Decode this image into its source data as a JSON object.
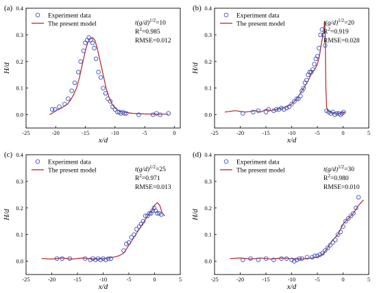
{
  "figure": {
    "panels": [
      {
        "id": "a",
        "label": "(a)",
        "t_value": "10",
        "r2": "0.985",
        "rmse": "0.012"
      },
      {
        "id": "b",
        "label": "(b)",
        "t_value": "20",
        "r2": "0.919",
        "rmse": "0.028"
      },
      {
        "id": "c",
        "label": "(c)",
        "t_value": "25",
        "r2": "0.971",
        "rmse": "0.013"
      },
      {
        "id": "d",
        "label": "(d)",
        "t_value": "30",
        "r2": "0.980",
        "rmse": "0.010"
      }
    ],
    "annotation": {
      "t_prefix": "t(g/d)",
      "t_exponent": "1/2",
      "r2_base": "R",
      "r2_exponent": "2",
      "rmse_prefix": "RMSE="
    },
    "colors": {
      "experiment": "#3a4fc1",
      "model": "#b22222",
      "axes": "#000000"
    }
  },
  "chart_data": [
    {
      "type": "scatter",
      "panel": "a",
      "xlabel": "x/d",
      "ylabel": "H/d",
      "xlim": [
        -25,
        1
      ],
      "ylim": [
        -0.05,
        0.4
      ],
      "xticks": [
        -25,
        -20,
        -15,
        -10,
        -5,
        0
      ],
      "yticks": [
        0.0,
        0.1,
        0.2,
        0.3,
        0.4
      ],
      "legend": "top-left",
      "series": [
        {
          "name": "Experiment data",
          "kind": "markers",
          "x": [
            -20.6,
            -20.1,
            -19.4,
            -18.5,
            -17.9,
            -17.3,
            -16.8,
            -16.2,
            -15.8,
            -15.3,
            -15.0,
            -14.7,
            -14.4,
            -14.1,
            -13.8,
            -13.5,
            -13.2,
            -12.8,
            -12.4,
            -12.0,
            -11.6,
            -11.2,
            -10.8,
            -10.4,
            -10.0,
            -9.6,
            -9.3,
            -9.0,
            -8.7,
            -8.4,
            -8.1,
            -6.0,
            -3.6,
            -3.0,
            -2.4,
            -1.0
          ],
          "y": [
            0.02,
            0.02,
            0.03,
            0.04,
            0.06,
            0.09,
            0.12,
            0.16,
            0.2,
            0.24,
            0.27,
            0.28,
            0.29,
            0.28,
            0.27,
            0.25,
            0.21,
            0.16,
            0.14,
            0.1,
            0.08,
            0.06,
            0.05,
            0.03,
            0.02,
            0.01,
            0.01,
            0.005,
            0.01,
            0.005,
            0.005,
            0.0,
            0.0,
            0.005,
            0.0,
            0.005
          ]
        },
        {
          "name": "The present model",
          "kind": "line",
          "x": [
            -21,
            -20,
            -19,
            -18,
            -17.5,
            -17,
            -16.5,
            -16,
            -15.5,
            -15,
            -14.6,
            -14.2,
            -13.8,
            -13.4,
            -13,
            -12.5,
            -12,
            -11.5,
            -11,
            -10.5,
            -10,
            -9.5,
            -9,
            -8,
            -7,
            -5,
            -3,
            -1
          ],
          "y": [
            0.0,
            0.015,
            0.025,
            0.04,
            0.055,
            0.075,
            0.1,
            0.14,
            0.19,
            0.24,
            0.27,
            0.285,
            0.29,
            0.28,
            0.25,
            0.2,
            0.15,
            0.1,
            0.065,
            0.04,
            0.025,
            0.017,
            0.012,
            0.008,
            0.005,
            0.003,
            0.002,
            0.002
          ]
        }
      ]
    },
    {
      "type": "scatter",
      "panel": "b",
      "xlabel": "x/d",
      "ylabel": "H/d",
      "xlim": [
        -25,
        5
      ],
      "ylim": [
        -0.05,
        0.4
      ],
      "xticks": [
        -25,
        -20,
        -15,
        -10,
        -5,
        0,
        5
      ],
      "yticks": [
        0.0,
        0.1,
        0.2,
        0.3,
        0.4
      ],
      "legend": "top-left",
      "series": [
        {
          "name": "Experiment data",
          "kind": "markers",
          "x": [
            -19.5,
            -17.5,
            -16.5,
            -15.0,
            -14.5,
            -13.5,
            -13.0,
            -12.5,
            -12.0,
            -11.5,
            -11.0,
            -10.5,
            -10.0,
            -9.5,
            -9.0,
            -8.7,
            -8.3,
            -8.0,
            -7.7,
            -7.4,
            -7.1,
            -6.8,
            -6.5,
            -6.2,
            -5.9,
            -5.6,
            -5.3,
            -5.0,
            -4.7,
            -4.4,
            -4.1,
            -3.8,
            -3.5,
            -3.2,
            -2.8,
            -2.4,
            -2.0,
            -1.6,
            -1.2,
            -0.8,
            -0.5,
            -0.2,
            0.1
          ],
          "y": [
            0.005,
            0.01,
            0.015,
            0.01,
            0.02,
            0.015,
            0.02,
            0.02,
            0.025,
            0.02,
            0.025,
            0.03,
            0.04,
            0.05,
            0.06,
            0.06,
            0.07,
            0.09,
            0.1,
            0.12,
            0.13,
            0.15,
            0.16,
            0.16,
            0.17,
            0.19,
            0.21,
            0.22,
            0.25,
            0.3,
            0.32,
            0.3,
            0.26,
            0.015,
            0.01,
            0.005,
            0.01,
            0.0,
            0.005,
            0.005,
            0.0,
            0.005,
            0.01
          ]
        },
        {
          "name": "The present model",
          "kind": "line",
          "x": [
            -23,
            -21,
            -19,
            -17,
            -16,
            -15,
            -14,
            -13,
            -12,
            -11,
            -10,
            -9,
            -8,
            -7,
            -6.5,
            -6,
            -5.5,
            -5,
            -4.6,
            -4.2,
            -3.9,
            -3.7,
            -3.55,
            -3.45,
            -3.35,
            -3.2,
            -3.0,
            -2.5,
            -1,
            0.5
          ],
          "y": [
            0.01,
            0.015,
            0.01,
            0.015,
            0.01,
            0.02,
            0.015,
            0.02,
            0.025,
            0.03,
            0.04,
            0.06,
            0.09,
            0.12,
            0.14,
            0.16,
            0.17,
            0.19,
            0.22,
            0.27,
            0.3,
            0.33,
            0.35,
            0.28,
            0.1,
            0.03,
            0.015,
            0.01,
            0.005,
            0.01
          ]
        }
      ]
    },
    {
      "type": "scatter",
      "panel": "c",
      "xlabel": "x/d",
      "ylabel": "H/d",
      "xlim": [
        -25,
        5
      ],
      "ylim": [
        -0.05,
        0.4
      ],
      "xticks": [
        -25,
        -20,
        -15,
        -10,
        -5,
        0,
        5
      ],
      "yticks": [
        0.0,
        0.1,
        0.2,
        0.3,
        0.4
      ],
      "legend": "top-left",
      "series": [
        {
          "name": "Experiment data",
          "kind": "markers",
          "x": [
            -19.0,
            -18.0,
            -16.5,
            -13.5,
            -12.5,
            -12.0,
            -11.5,
            -11.0,
            -10.5,
            -10.0,
            -9.5,
            -9.0,
            -8.5,
            -6.0,
            -5.5,
            -5.0,
            -4.5,
            -4.0,
            -3.5,
            -3.0,
            -2.6,
            -2.2,
            -1.8,
            -1.4,
            -1.0,
            -0.7,
            -0.4,
            -0.1,
            0.2,
            0.5,
            0.9,
            1.3
          ],
          "y": [
            0.01,
            0.01,
            0.01,
            0.01,
            0.005,
            0.01,
            0.005,
            0.01,
            0.005,
            0.01,
            0.005,
            0.01,
            0.01,
            0.04,
            0.065,
            0.07,
            0.09,
            0.1,
            0.12,
            0.13,
            0.14,
            0.15,
            0.17,
            0.17,
            0.18,
            0.18,
            0.19,
            0.2,
            0.19,
            0.18,
            0.18,
            0.175
          ]
        },
        {
          "name": "The present model",
          "kind": "line",
          "x": [
            -22,
            -20,
            -18,
            -16,
            -14,
            -12,
            -10,
            -8,
            -7,
            -6,
            -5,
            -4,
            -3,
            -2,
            -1,
            -0.5,
            0,
            0.5,
            1,
            1.5,
            2
          ],
          "y": [
            0.01,
            0.008,
            0.012,
            0.008,
            0.012,
            0.008,
            0.01,
            0.015,
            0.02,
            0.03,
            0.06,
            0.09,
            0.12,
            0.15,
            0.18,
            0.19,
            0.21,
            0.22,
            0.21,
            0.18,
            0.17
          ]
        }
      ]
    },
    {
      "type": "scatter",
      "panel": "d",
      "xlabel": "x/d",
      "ylabel": "H/d",
      "xlim": [
        -25,
        5
      ],
      "ylim": [
        -0.05,
        0.4
      ],
      "xticks": [
        -25,
        -20,
        -15,
        -10,
        -5,
        0,
        5
      ],
      "yticks": [
        0.0,
        0.1,
        0.2,
        0.3,
        0.4
      ],
      "legend": "top-left",
      "series": [
        {
          "name": "Experiment data",
          "kind": "markers",
          "x": [
            -19.5,
            -18.0,
            -16.5,
            -15.0,
            -13.5,
            -12.0,
            -11.0,
            -10.0,
            -9.5,
            -9.0,
            -8.5,
            -8.0,
            -7.0,
            -6.0,
            -5.5,
            -5.0,
            -4.5,
            -4.0,
            -3.5,
            -3.0,
            -2.5,
            -2.0,
            -1.5,
            -1.0,
            -0.5,
            0.0,
            0.5,
            1.0,
            1.5,
            2.0,
            2.5,
            3.0
          ],
          "y": [
            0.005,
            0.01,
            0.005,
            0.01,
            0.005,
            0.01,
            0.01,
            0.005,
            0.0,
            0.005,
            0.01,
            0.01,
            0.015,
            0.015,
            0.02,
            0.02,
            0.025,
            0.03,
            0.04,
            0.05,
            0.06,
            0.07,
            0.08,
            0.1,
            0.11,
            0.13,
            0.15,
            0.16,
            0.17,
            0.18,
            0.2,
            0.24
          ]
        },
        {
          "name": "The present model",
          "kind": "line",
          "x": [
            -22,
            -20,
            -18,
            -16,
            -14,
            -12,
            -10,
            -8,
            -6,
            -5,
            -4,
            -3,
            -2,
            -1,
            0,
            1,
            2,
            3,
            4
          ],
          "y": [
            0.01,
            0.012,
            0.008,
            0.012,
            0.008,
            0.012,
            0.01,
            0.008,
            0.012,
            0.015,
            0.025,
            0.05,
            0.08,
            0.1,
            0.14,
            0.16,
            0.18,
            0.21,
            0.23
          ]
        }
      ]
    }
  ]
}
